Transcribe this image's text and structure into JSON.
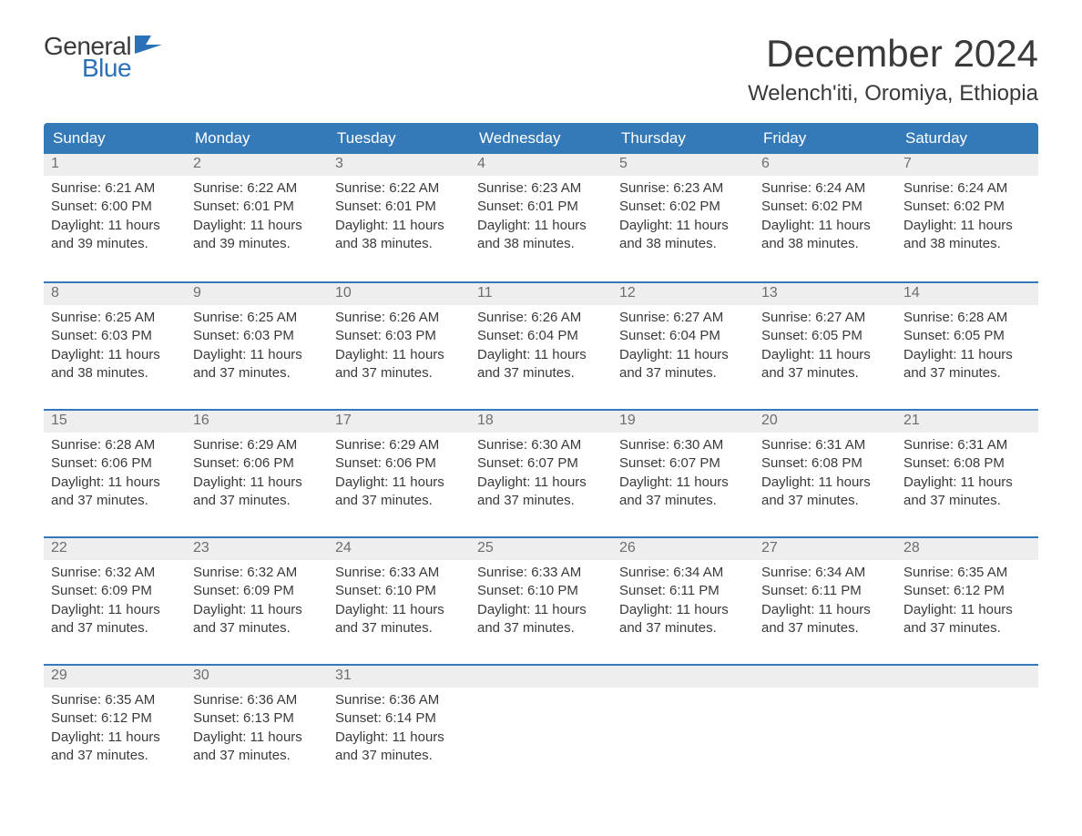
{
  "logo": {
    "general": "General",
    "blue": "Blue",
    "flag_color": "#2a71b8"
  },
  "header": {
    "month_title": "December 2024",
    "location": "Welench'iti, Oromiya, Ethiopia"
  },
  "colors": {
    "header_bg": "#357ab8",
    "header_text": "#ffffff",
    "day_number_bg": "#eeeeee",
    "day_number_text": "#6e6e6e",
    "body_text": "#3a3a3a",
    "week_border": "#357ab8",
    "page_bg": "#ffffff"
  },
  "typography": {
    "month_title_fontsize": 42,
    "location_fontsize": 24,
    "day_header_fontsize": 17,
    "day_number_fontsize": 16,
    "body_fontsize": 15,
    "logo_fontsize": 28
  },
  "day_headers": [
    "Sunday",
    "Monday",
    "Tuesday",
    "Wednesday",
    "Thursday",
    "Friday",
    "Saturday"
  ],
  "weeks": [
    [
      {
        "num": "1",
        "sunrise": "Sunrise: 6:21 AM",
        "sunset": "Sunset: 6:00 PM",
        "daylight1": "Daylight: 11 hours",
        "daylight2": "and 39 minutes."
      },
      {
        "num": "2",
        "sunrise": "Sunrise: 6:22 AM",
        "sunset": "Sunset: 6:01 PM",
        "daylight1": "Daylight: 11 hours",
        "daylight2": "and 39 minutes."
      },
      {
        "num": "3",
        "sunrise": "Sunrise: 6:22 AM",
        "sunset": "Sunset: 6:01 PM",
        "daylight1": "Daylight: 11 hours",
        "daylight2": "and 38 minutes."
      },
      {
        "num": "4",
        "sunrise": "Sunrise: 6:23 AM",
        "sunset": "Sunset: 6:01 PM",
        "daylight1": "Daylight: 11 hours",
        "daylight2": "and 38 minutes."
      },
      {
        "num": "5",
        "sunrise": "Sunrise: 6:23 AM",
        "sunset": "Sunset: 6:02 PM",
        "daylight1": "Daylight: 11 hours",
        "daylight2": "and 38 minutes."
      },
      {
        "num": "6",
        "sunrise": "Sunrise: 6:24 AM",
        "sunset": "Sunset: 6:02 PM",
        "daylight1": "Daylight: 11 hours",
        "daylight2": "and 38 minutes."
      },
      {
        "num": "7",
        "sunrise": "Sunrise: 6:24 AM",
        "sunset": "Sunset: 6:02 PM",
        "daylight1": "Daylight: 11 hours",
        "daylight2": "and 38 minutes."
      }
    ],
    [
      {
        "num": "8",
        "sunrise": "Sunrise: 6:25 AM",
        "sunset": "Sunset: 6:03 PM",
        "daylight1": "Daylight: 11 hours",
        "daylight2": "and 38 minutes."
      },
      {
        "num": "9",
        "sunrise": "Sunrise: 6:25 AM",
        "sunset": "Sunset: 6:03 PM",
        "daylight1": "Daylight: 11 hours",
        "daylight2": "and 37 minutes."
      },
      {
        "num": "10",
        "sunrise": "Sunrise: 6:26 AM",
        "sunset": "Sunset: 6:03 PM",
        "daylight1": "Daylight: 11 hours",
        "daylight2": "and 37 minutes."
      },
      {
        "num": "11",
        "sunrise": "Sunrise: 6:26 AM",
        "sunset": "Sunset: 6:04 PM",
        "daylight1": "Daylight: 11 hours",
        "daylight2": "and 37 minutes."
      },
      {
        "num": "12",
        "sunrise": "Sunrise: 6:27 AM",
        "sunset": "Sunset: 6:04 PM",
        "daylight1": "Daylight: 11 hours",
        "daylight2": "and 37 minutes."
      },
      {
        "num": "13",
        "sunrise": "Sunrise: 6:27 AM",
        "sunset": "Sunset: 6:05 PM",
        "daylight1": "Daylight: 11 hours",
        "daylight2": "and 37 minutes."
      },
      {
        "num": "14",
        "sunrise": "Sunrise: 6:28 AM",
        "sunset": "Sunset: 6:05 PM",
        "daylight1": "Daylight: 11 hours",
        "daylight2": "and 37 minutes."
      }
    ],
    [
      {
        "num": "15",
        "sunrise": "Sunrise: 6:28 AM",
        "sunset": "Sunset: 6:06 PM",
        "daylight1": "Daylight: 11 hours",
        "daylight2": "and 37 minutes."
      },
      {
        "num": "16",
        "sunrise": "Sunrise: 6:29 AM",
        "sunset": "Sunset: 6:06 PM",
        "daylight1": "Daylight: 11 hours",
        "daylight2": "and 37 minutes."
      },
      {
        "num": "17",
        "sunrise": "Sunrise: 6:29 AM",
        "sunset": "Sunset: 6:06 PM",
        "daylight1": "Daylight: 11 hours",
        "daylight2": "and 37 minutes."
      },
      {
        "num": "18",
        "sunrise": "Sunrise: 6:30 AM",
        "sunset": "Sunset: 6:07 PM",
        "daylight1": "Daylight: 11 hours",
        "daylight2": "and 37 minutes."
      },
      {
        "num": "19",
        "sunrise": "Sunrise: 6:30 AM",
        "sunset": "Sunset: 6:07 PM",
        "daylight1": "Daylight: 11 hours",
        "daylight2": "and 37 minutes."
      },
      {
        "num": "20",
        "sunrise": "Sunrise: 6:31 AM",
        "sunset": "Sunset: 6:08 PM",
        "daylight1": "Daylight: 11 hours",
        "daylight2": "and 37 minutes."
      },
      {
        "num": "21",
        "sunrise": "Sunrise: 6:31 AM",
        "sunset": "Sunset: 6:08 PM",
        "daylight1": "Daylight: 11 hours",
        "daylight2": "and 37 minutes."
      }
    ],
    [
      {
        "num": "22",
        "sunrise": "Sunrise: 6:32 AM",
        "sunset": "Sunset: 6:09 PM",
        "daylight1": "Daylight: 11 hours",
        "daylight2": "and 37 minutes."
      },
      {
        "num": "23",
        "sunrise": "Sunrise: 6:32 AM",
        "sunset": "Sunset: 6:09 PM",
        "daylight1": "Daylight: 11 hours",
        "daylight2": "and 37 minutes."
      },
      {
        "num": "24",
        "sunrise": "Sunrise: 6:33 AM",
        "sunset": "Sunset: 6:10 PM",
        "daylight1": "Daylight: 11 hours",
        "daylight2": "and 37 minutes."
      },
      {
        "num": "25",
        "sunrise": "Sunrise: 6:33 AM",
        "sunset": "Sunset: 6:10 PM",
        "daylight1": "Daylight: 11 hours",
        "daylight2": "and 37 minutes."
      },
      {
        "num": "26",
        "sunrise": "Sunrise: 6:34 AM",
        "sunset": "Sunset: 6:11 PM",
        "daylight1": "Daylight: 11 hours",
        "daylight2": "and 37 minutes."
      },
      {
        "num": "27",
        "sunrise": "Sunrise: 6:34 AM",
        "sunset": "Sunset: 6:11 PM",
        "daylight1": "Daylight: 11 hours",
        "daylight2": "and 37 minutes."
      },
      {
        "num": "28",
        "sunrise": "Sunrise: 6:35 AM",
        "sunset": "Sunset: 6:12 PM",
        "daylight1": "Daylight: 11 hours",
        "daylight2": "and 37 minutes."
      }
    ],
    [
      {
        "num": "29",
        "sunrise": "Sunrise: 6:35 AM",
        "sunset": "Sunset: 6:12 PM",
        "daylight1": "Daylight: 11 hours",
        "daylight2": "and 37 minutes."
      },
      {
        "num": "30",
        "sunrise": "Sunrise: 6:36 AM",
        "sunset": "Sunset: 6:13 PM",
        "daylight1": "Daylight: 11 hours",
        "daylight2": "and 37 minutes."
      },
      {
        "num": "31",
        "sunrise": "Sunrise: 6:36 AM",
        "sunset": "Sunset: 6:14 PM",
        "daylight1": "Daylight: 11 hours",
        "daylight2": "and 37 minutes."
      },
      null,
      null,
      null,
      null
    ]
  ]
}
